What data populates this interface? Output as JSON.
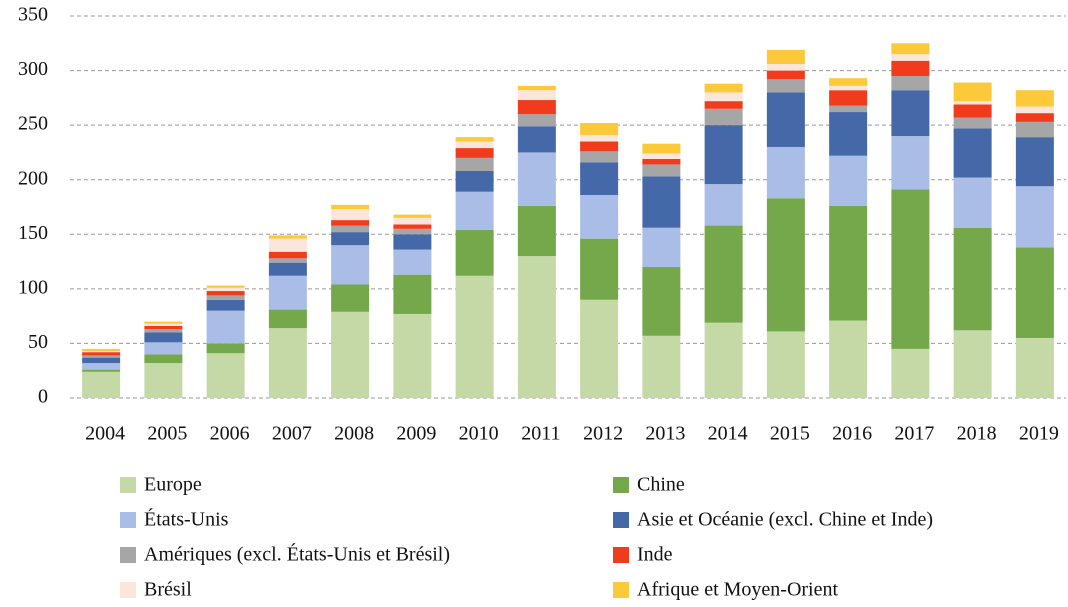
{
  "chart_data": {
    "type": "bar",
    "stacked": true,
    "categories": [
      "2004",
      "2005",
      "2006",
      "2007",
      "2008",
      "2009",
      "2010",
      "2011",
      "2012",
      "2013",
      "2014",
      "2015",
      "2016",
      "2017",
      "2018",
      "2019"
    ],
    "series": [
      {
        "name": "Europe",
        "color": "#c4d9a6",
        "values": [
          24,
          32,
          41,
          64,
          79,
          77,
          112,
          130,
          90,
          57,
          69,
          61,
          71,
          45,
          62,
          55
        ]
      },
      {
        "name": "Chine",
        "color": "#74a84a",
        "values": [
          2,
          8,
          9,
          17,
          25,
          36,
          42,
          46,
          56,
          63,
          89,
          122,
          105,
          146,
          94,
          83
        ]
      },
      {
        "name": "États-Unis",
        "color": "#a9bde6",
        "values": [
          6,
          11,
          30,
          31,
          36,
          23,
          35,
          49,
          40,
          36,
          38,
          47,
          46,
          49,
          46,
          56
        ]
      },
      {
        "name": "Asie et Océanie (excl. Chine et Inde)",
        "color": "#4569a8",
        "values": [
          5,
          9,
          10,
          12,
          12,
          14,
          19,
          24,
          30,
          47,
          54,
          50,
          40,
          42,
          45,
          45
        ]
      },
      {
        "name": "Amériques (excl. États-Unis et Brésil)",
        "color": "#a6a6a6",
        "values": [
          2,
          3,
          4,
          4,
          6,
          5,
          12,
          11,
          10,
          11,
          15,
          12,
          6,
          13,
          10,
          14
        ]
      },
      {
        "name": "Inde",
        "color": "#f03c1c",
        "values": [
          3,
          3,
          4,
          6,
          5,
          4,
          9,
          13,
          9,
          5,
          7,
          8,
          14,
          14,
          12,
          8
        ]
      },
      {
        "name": "Brésil",
        "color": "#fce6dc",
        "values": [
          1,
          2,
          3,
          12,
          10,
          6,
          6,
          9,
          6,
          5,
          8,
          6,
          4,
          6,
          3,
          6
        ]
      },
      {
        "name": "Afrique et Moyen-Orient",
        "color": "#fcc93a",
        "values": [
          2,
          2,
          2,
          3,
          4,
          3,
          4,
          4,
          11,
          9,
          8,
          13,
          7,
          10,
          17,
          15
        ]
      }
    ],
    "ylim": [
      0,
      350
    ],
    "yticks": [
      0,
      50,
      100,
      150,
      200,
      250,
      300,
      350
    ],
    "grid": true
  }
}
